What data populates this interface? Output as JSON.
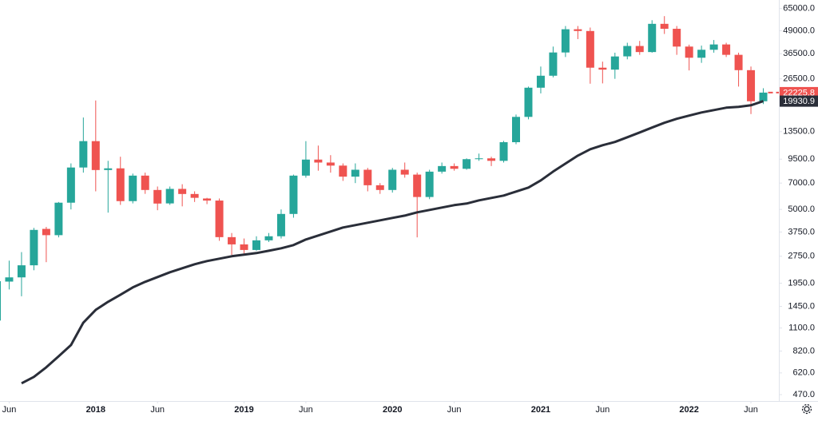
{
  "chart_data": {
    "type": "candlestick",
    "log_scale": true,
    "grid": false,
    "up_color": "#26a69a",
    "down_color": "#ef5350",
    "x": [
      "2017-05",
      "2017-06",
      "2017-07",
      "2017-08",
      "2017-09",
      "2017-10",
      "2017-11",
      "2017-12",
      "2018-01",
      "2018-02",
      "2018-03",
      "2018-04",
      "2018-05",
      "2018-06",
      "2018-07",
      "2018-08",
      "2018-09",
      "2018-10",
      "2018-11",
      "2018-12",
      "2019-01",
      "2019-02",
      "2019-03",
      "2019-04",
      "2019-05",
      "2019-06",
      "2019-07",
      "2019-08",
      "2019-09",
      "2019-10",
      "2019-11",
      "2019-12",
      "2020-01",
      "2020-02",
      "2020-03",
      "2020-04",
      "2020-05",
      "2020-06",
      "2020-07",
      "2020-08",
      "2020-09",
      "2020-10",
      "2020-11",
      "2020-12",
      "2021-01",
      "2021-02",
      "2021-03",
      "2021-04",
      "2021-05",
      "2021-06",
      "2021-07",
      "2021-08",
      "2021-09",
      "2021-10",
      "2021-11",
      "2021-12",
      "2022-01",
      "2022-02",
      "2022-03",
      "2022-04",
      "2022-05",
      "2022-06",
      "2022-07"
    ],
    "open": [
      1210,
      1990,
      2100,
      2450,
      3900,
      3600,
      5450,
      8540,
      11960,
      8270,
      8450,
      5560,
      7700,
      6410,
      5400,
      6500,
      6090,
      5750,
      5600,
      3510,
      3200,
      2980,
      3370,
      3550,
      4720,
      7700,
      9450,
      9100,
      8750,
      7600,
      8300,
      6810,
      6410,
      8300,
      7800,
      5860,
      8100,
      8700,
      8400,
      9500,
      9600,
      9300,
      11800,
      16300,
      23660,
      27570,
      37100,
      49900,
      48800,
      30550,
      29800,
      35300,
      40300,
      37300,
      53480,
      50200,
      40000,
      34690,
      38400,
      41100,
      36000,
      29600,
      19900
    ],
    "high": [
      2150,
      2600,
      2900,
      3950,
      4000,
      5500,
      9000,
      16170,
      20100,
      9300,
      9800,
      7900,
      8000,
      6700,
      6700,
      6900,
      6300,
      5800,
      5750,
      3700,
      3450,
      3550,
      3700,
      5000,
      7800,
      11960,
      11300,
      10000,
      9000,
      9000,
      8500,
      7000,
      8500,
      9100,
      8000,
      8300,
      9100,
      9000,
      9600,
      10200,
      9800,
      12000,
      16800,
      24000,
      31000,
      40000,
      52000,
      52000,
      51000,
      33000,
      37000,
      42000,
      43000,
      56000,
      59000,
      52000,
      41000,
      40500,
      43500,
      42000,
      37000,
      31000,
      23500
    ],
    "low": [
      1210,
      1800,
      1650,
      2300,
      2550,
      3500,
      5000,
      8000,
      6300,
      4800,
      5300,
      5400,
      6100,
      4950,
      5300,
      5200,
      5500,
      5350,
      3350,
      2800,
      2850,
      2950,
      3300,
      3450,
      4500,
      7500,
      8200,
      8000,
      7200,
      7000,
      6300,
      6100,
      6200,
      7500,
      3500,
      5700,
      7900,
      8200,
      8300,
      9300,
      8700,
      9100,
      11500,
      15800,
      22000,
      27000,
      35000,
      44000,
      24900,
      25000,
      26500,
      34000,
      36000,
      37000,
      47000,
      36000,
      29500,
      32500,
      37000,
      35000,
      24000,
      16900,
      19200
    ],
    "close": [
      2000,
      2100,
      2450,
      3850,
      3600,
      5450,
      8540,
      11960,
      8270,
      8450,
      5560,
      7700,
      6410,
      5390,
      6500,
      6090,
      5800,
      5600,
      3510,
      3200,
      2980,
      3370,
      3550,
      4720,
      7700,
      9450,
      9100,
      8750,
      7600,
      8300,
      6810,
      6410,
      8300,
      7800,
      5860,
      8100,
      8700,
      8400,
      9500,
      9600,
      9300,
      11800,
      16300,
      23660,
      27570,
      37100,
      49900,
      48800,
      30550,
      29800,
      35260,
      40300,
      37300,
      53480,
      50200,
      40000,
      34690,
      38400,
      41100,
      36000,
      29600,
      19900,
      22225.8
    ],
    "ma": {
      "color": "#2a2e39",
      "values": [
        null,
        null,
        543,
        589,
        666,
        767,
        885,
        1178,
        1387,
        1537,
        1684,
        1847,
        1983,
        2108,
        2243,
        2360,
        2482,
        2586,
        2666,
        2749,
        2805,
        2863,
        2951,
        3044,
        3172,
        3405,
        3585,
        3773,
        3970,
        4094,
        4219,
        4350,
        4487,
        4623,
        4818,
        4970,
        5122,
        5283,
        5389,
        5615,
        5791,
        5968,
        6280,
        6610,
        7249,
        8105,
        8976,
        9937,
        10790,
        11350,
        11830,
        12570,
        13360,
        14220,
        15110,
        15900,
        16570,
        17240,
        17780,
        18340,
        18530,
        18910,
        19930.9
      ]
    },
    "price_tags": [
      {
        "value": 22225.8,
        "color": "#ef5350"
      },
      {
        "value": 19930.9,
        "color": "#2a2e39"
      }
    ],
    "xlim": [
      "2017-05",
      "2022-08"
    ],
    "xticks": [
      {
        "value": "2017-06",
        "label": "Jun"
      },
      {
        "value": "2018-01",
        "label": "2018"
      },
      {
        "value": "2018-06",
        "label": "Jun"
      },
      {
        "value": "2019-01",
        "label": "2019"
      },
      {
        "value": "2019-06",
        "label": "Jun"
      },
      {
        "value": "2020-01",
        "label": "2020"
      },
      {
        "value": "2020-06",
        "label": "Jun"
      },
      {
        "value": "2021-01",
        "label": "2021"
      },
      {
        "value": "2021-06",
        "label": "Jun"
      },
      {
        "value": "2022-01",
        "label": "2022"
      },
      {
        "value": "2022-06",
        "label": "Jun"
      }
    ],
    "ylim": [
      420,
      72500
    ],
    "yticks": [
      {
        "value": 65000,
        "label": "65000.0"
      },
      {
        "value": 49000,
        "label": "49000.0"
      },
      {
        "value": 36500,
        "label": "36500.0"
      },
      {
        "value": 26500,
        "label": "26500.0"
      },
      {
        "value": 13500,
        "label": "13500.0"
      },
      {
        "value": 9500,
        "label": "9500.0"
      },
      {
        "value": 7000,
        "label": "7000.0"
      },
      {
        "value": 5000,
        "label": "5000.0"
      },
      {
        "value": 3750,
        "label": "3750.0"
      },
      {
        "value": 2750,
        "label": "2750.0"
      },
      {
        "value": 1950,
        "label": "1950.0"
      },
      {
        "value": 1450,
        "label": "1450.0"
      },
      {
        "value": 1100,
        "label": "1100.0"
      },
      {
        "value": 820,
        "label": "820.0"
      },
      {
        "value": 620,
        "label": "620.0"
      },
      {
        "value": 470,
        "label": "470.0"
      }
    ]
  }
}
